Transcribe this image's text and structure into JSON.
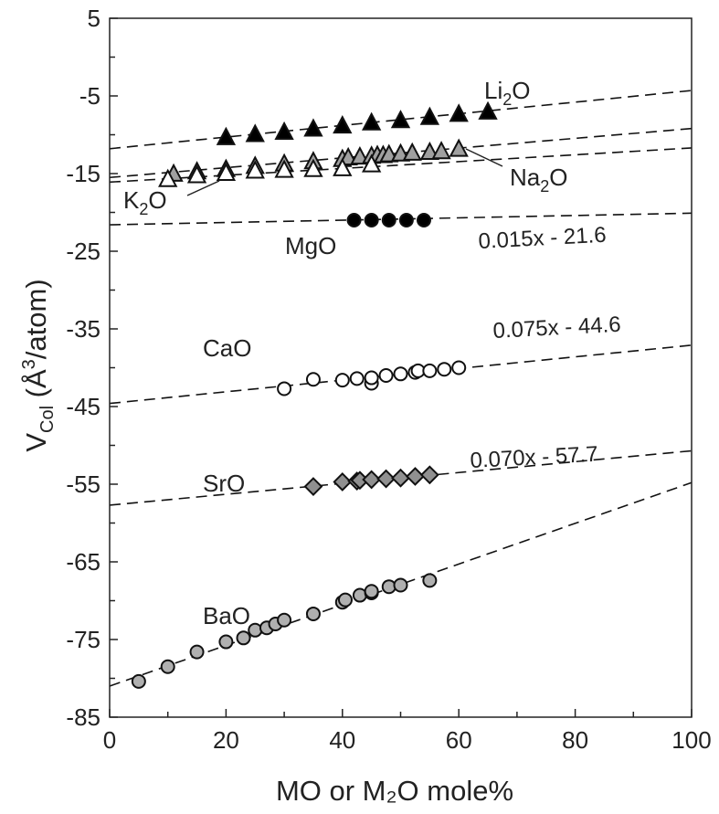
{
  "chart_data": {
    "type": "scatter",
    "xlabel": "MO or M₂O mole%",
    "ylabel_main": "V",
    "ylabel_sub": "Col",
    "ylabel_rest": " (Å",
    "ylabel_sup": "3",
    "ylabel_end": "/atom)",
    "xlim": [
      0,
      100
    ],
    "ylim": [
      -85,
      5
    ],
    "xticks": [
      0,
      20,
      40,
      60,
      80,
      100
    ],
    "yticks": [
      5,
      -5,
      -15,
      -25,
      -35,
      -45,
      -55,
      -65,
      -75,
      -85
    ],
    "grid": false,
    "series": [
      {
        "name": "Li2O",
        "label": "Li",
        "label_sub": "2",
        "label_end": "O",
        "marker": "triangle",
        "fill": "#000000",
        "x": [
          20,
          25,
          30,
          35,
          40,
          45,
          50,
          55,
          60,
          65
        ],
        "y": [
          -10.4,
          -10.0,
          -9.7,
          -9.3,
          -8.9,
          -8.5,
          -8.2,
          -7.8,
          -7.4,
          -7.1
        ],
        "fit": [
          [
            0,
            -11.8
          ],
          [
            100,
            -4.3
          ]
        ]
      },
      {
        "name": "Na2O",
        "label": "Na",
        "label_sub": "2",
        "label_end": "O",
        "marker": "triangle",
        "fill": "#a0a0a0",
        "x": [
          11,
          15,
          20,
          25,
          30,
          35,
          40,
          41,
          43,
          45,
          46,
          47,
          48,
          50,
          52,
          55,
          57,
          60
        ],
        "y": [
          -15.1,
          -14.8,
          -14.5,
          -14.1,
          -13.8,
          -13.5,
          -13.2,
          -13.0,
          -12.9,
          -12.8,
          -12.7,
          -12.7,
          -12.6,
          -12.5,
          -12.4,
          -12.3,
          -12.2,
          -11.9
        ],
        "fit": [
          [
            0,
            -15.5
          ],
          [
            100,
            -9.2
          ]
        ]
      },
      {
        "name": "K2O",
        "label": "K",
        "label_sub": "2",
        "label_end": "O",
        "marker": "triangle",
        "fill": "#ffffff",
        "x": [
          10,
          15,
          20,
          25,
          30,
          35,
          40,
          45
        ],
        "y": [
          -15.8,
          -15.3,
          -15.0,
          -14.7,
          -14.6,
          -14.5,
          -14.4,
          -13.9
        ],
        "fit": [
          [
            0,
            -16.1
          ],
          [
            100,
            -11.7
          ]
        ]
      },
      {
        "name": "MgO",
        "label": "MgO",
        "marker": "circle",
        "fill": "#000000",
        "x": [
          42,
          45,
          48,
          51,
          54
        ],
        "y": [
          -21,
          -21,
          -21,
          -21,
          -21
        ],
        "fit": [
          [
            0,
            -21.6
          ],
          [
            100,
            -20.1
          ]
        ],
        "equation": "0.015x - 21.6"
      },
      {
        "name": "CaO",
        "label": "CaO",
        "marker": "circle",
        "fill": "#ffffff",
        "x": [
          30,
          35,
          40,
          42.5,
          45,
          45,
          47.5,
          50,
          52.5,
          53,
          55,
          57.5,
          60
        ],
        "y": [
          -42.7,
          -41.5,
          -41.6,
          -41.4,
          -42.0,
          -41.3,
          -41.0,
          -40.8,
          -40.6,
          -40.4,
          -40.4,
          -40.2,
          -40.0
        ],
        "fit": [
          [
            0,
            -44.6
          ],
          [
            100,
            -37.1
          ]
        ],
        "equation": "0.075x - 44.6"
      },
      {
        "name": "SrO",
        "label": "SrO",
        "marker": "diamond",
        "fill": "#909090",
        "x": [
          35,
          40,
          42.5,
          43,
          45,
          47.5,
          50,
          52.5,
          55
        ],
        "y": [
          -55.3,
          -54.7,
          -54.6,
          -54.5,
          -54.4,
          -54.3,
          -54.2,
          -54.0,
          -53.8
        ],
        "fit": [
          [
            0,
            -57.7
          ],
          [
            100,
            -50.7
          ]
        ],
        "equation": "0.070x - 57.7"
      },
      {
        "name": "BaO",
        "label": "BaO",
        "marker": "circle",
        "fill": "#b0b0b0",
        "x": [
          5,
          10,
          15,
          20,
          23,
          25,
          27,
          28.5,
          30,
          35,
          40,
          40.5,
          43,
          45,
          45,
          48,
          50,
          55
        ],
        "y": [
          -80.4,
          -78.5,
          -76.6,
          -75.3,
          -74.8,
          -73.8,
          -73.5,
          -73.0,
          -72.5,
          -71.7,
          -70.2,
          -69.9,
          -69.3,
          -69.0,
          -68.8,
          -68.2,
          -68.0,
          -67.4
        ],
        "fit": [
          [
            0,
            -81
          ],
          [
            100,
            -54.8
          ]
        ]
      }
    ]
  }
}
